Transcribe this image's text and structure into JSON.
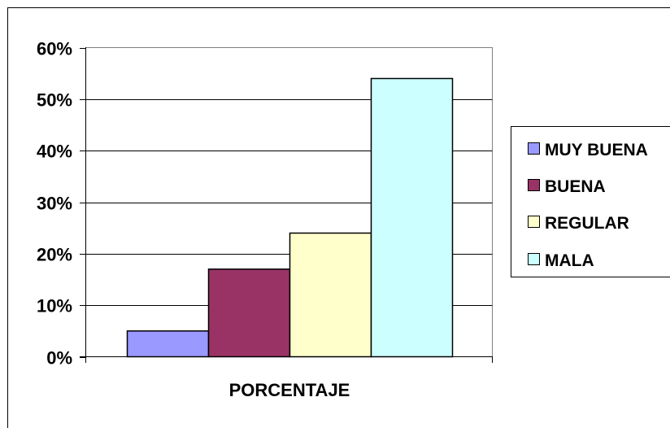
{
  "chart_data": {
    "type": "bar",
    "categories": [
      "PORCENTAJE"
    ],
    "xlabel": "PORCENTAJE",
    "ylabel": "",
    "title": "",
    "ylim": [
      0,
      0.6
    ],
    "yticks": [
      "0%",
      "10%",
      "20%",
      "30%",
      "40%",
      "50%",
      "60%"
    ],
    "grid": true,
    "legend_position": "right",
    "series": [
      {
        "name": "MUY BUENA",
        "values": [
          0.05
        ],
        "color": "#9999ff"
      },
      {
        "name": "BUENA",
        "values": [
          0.17
        ],
        "color": "#993366"
      },
      {
        "name": "REGULAR",
        "values": [
          0.24
        ],
        "color": "#ffffcc"
      },
      {
        "name": "MALA",
        "values": [
          0.54
        ],
        "color": "#ccffff"
      }
    ]
  }
}
